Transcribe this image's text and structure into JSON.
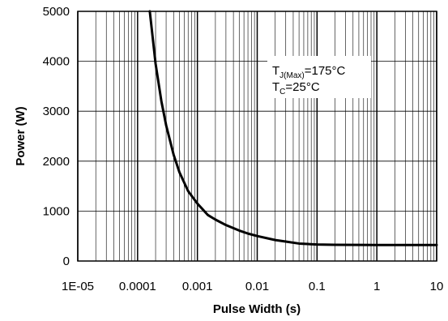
{
  "chart_data": {
    "type": "line",
    "xlabel": "Pulse Width (s)",
    "ylabel": "Power (W)",
    "x_scale": "log",
    "xlim": [
      1e-05,
      10
    ],
    "ylim": [
      0,
      5000
    ],
    "x_ticks": [
      1e-05,
      0.0001,
      0.001,
      0.01,
      0.1,
      1,
      10
    ],
    "x_tick_labels": [
      "1E-05",
      "0.0001",
      "0.001",
      "0.01",
      "0.1",
      "1",
      "10"
    ],
    "y_ticks": [
      0,
      1000,
      2000,
      3000,
      4000,
      5000
    ],
    "y_tick_labels": [
      "0",
      "1000",
      "2000",
      "3000",
      "4000",
      "5000"
    ],
    "grid": true,
    "annotation": {
      "line1_main": "T",
      "line1_sub": "J(Max)",
      "line1_rest": "=175°C",
      "line2_main": "T",
      "line2_sub": "C",
      "line2_rest": "=25°C"
    },
    "colors": {
      "line": "#000000",
      "grid": "#000000",
      "background": "#ffffff"
    },
    "series": [
      {
        "x": [
          0.00016,
          0.0002,
          0.00025,
          0.0003,
          0.0004,
          0.0005,
          0.0007,
          0.001,
          0.0015,
          0.002,
          0.003,
          0.005,
          0.007,
          0.01,
          0.02,
          0.03,
          0.05,
          0.07,
          0.1,
          0.2,
          0.5,
          1,
          2,
          5,
          10
        ],
        "y": [
          5000,
          3950,
          3200,
          2720,
          2130,
          1780,
          1400,
          1150,
          920,
          830,
          720,
          610,
          550,
          500,
          420,
          390,
          350,
          340,
          330,
          325,
          322,
          320,
          320,
          320,
          320
        ]
      }
    ]
  }
}
